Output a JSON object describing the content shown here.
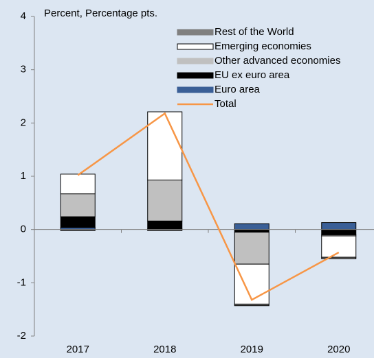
{
  "chart_data": {
    "type": "bar",
    "stacked": true,
    "y_label": "Percent, Percentage pts.",
    "categories": [
      "2017",
      "2018",
      "2019",
      "2020"
    ],
    "series": [
      {
        "name": "Rest of the World",
        "color": "#808080",
        "values": [
          -0.02,
          -0.02,
          -0.03,
          -0.03
        ]
      },
      {
        "name": "Emerging economies",
        "color": "#ffffff",
        "values": [
          0.37,
          1.28,
          -0.75,
          -0.4
        ]
      },
      {
        "name": "Other advanced economies",
        "color": "#c0c0c0",
        "values": [
          0.43,
          0.77,
          -0.6,
          -0.02
        ]
      },
      {
        "name": "EU ex euro area",
        "color": "#000000",
        "values": [
          0.2,
          0.15,
          -0.05,
          -0.1
        ]
      },
      {
        "name": "Euro area",
        "color": "#3a5f97",
        "values": [
          0.04,
          0.01,
          0.11,
          0.13
        ]
      },
      {
        "name": "Total",
        "type": "line",
        "color": "#f79646",
        "values": [
          1.02,
          2.18,
          -1.32,
          -0.43
        ]
      }
    ],
    "ylim": [
      -2,
      4
    ],
    "yticks": [
      -2,
      -1,
      0,
      1,
      2,
      3,
      4
    ],
    "grid": false
  }
}
